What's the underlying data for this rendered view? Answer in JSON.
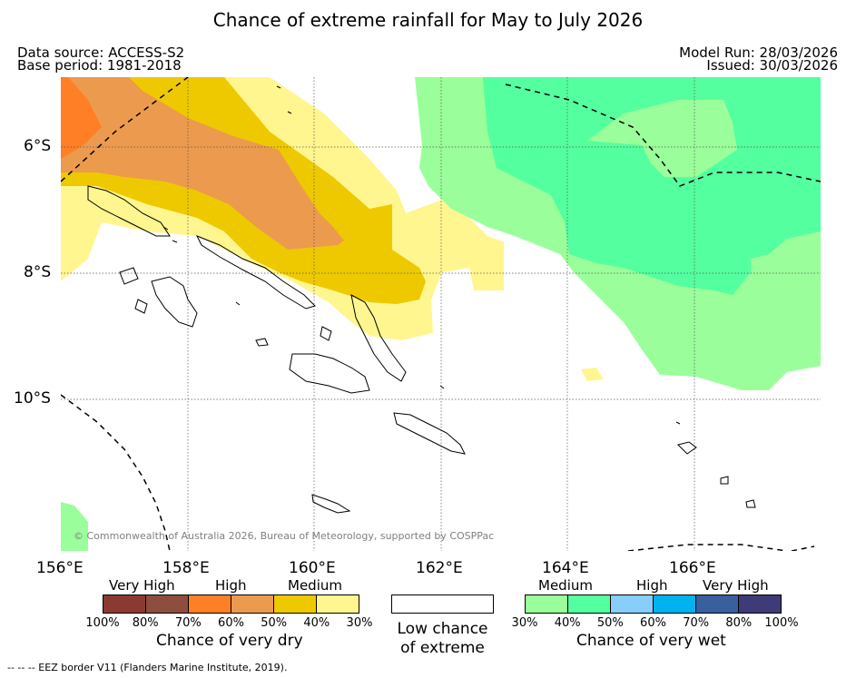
{
  "title": "Chance of extreme rainfall for May to July 2026",
  "header": {
    "data_source": "Data source: ACCESS-S2",
    "base_period": "Base period: 1981-2018",
    "model_run": "Model Run: 28/03/2026",
    "issued": "Issued: 30/03/2026"
  },
  "map": {
    "lat_labels": [
      "6°S",
      "8°S",
      "10°S"
    ],
    "lon_labels": [
      "156°E",
      "158°E",
      "160°E",
      "162°E",
      "164°E",
      "166°E"
    ],
    "copyright": "© Commonwealth of Australia 2026, Bureau of Meteorology, supported by COSPPac"
  },
  "legend": {
    "dry": {
      "levels": [
        "Very High",
        "High",
        "Medium"
      ],
      "colors": [
        "#8b3a32",
        "#8e4e3d",
        "#ff7f27",
        "#ec9a4d",
        "#eec900",
        "#fff68f"
      ],
      "ticks": [
        "100%",
        "80%",
        "70%",
        "60%",
        "50%",
        "40%",
        "30%"
      ],
      "caption": "Chance of very dry"
    },
    "low": {
      "line1": "Low chance",
      "line2": "of extreme"
    },
    "wet": {
      "levels": [
        "Medium",
        "High",
        "Very High"
      ],
      "colors": [
        "#9aff9a",
        "#54ff9f",
        "#87cefa",
        "#00b2ee",
        "#3a5f9f",
        "#3e3b78"
      ],
      "ticks": [
        "30%",
        "40%",
        "50%",
        "60%",
        "70%",
        "80%",
        "100%"
      ],
      "caption": "Chance of very wet"
    }
  },
  "footnote": "--  --  -- EEZ border V11 (Flanders Marine Institute, 2019)."
}
